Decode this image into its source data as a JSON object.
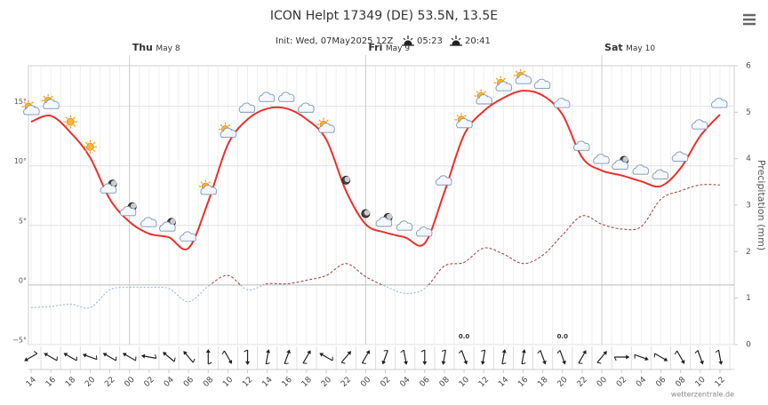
{
  "chart_data": {
    "type": "meteogram",
    "title": "ICON Helpt 17349 (DE) 53.5N, 13.5E",
    "subtitle": "Init: Wed, 07May2025 12Z",
    "sunrise": "05:23",
    "sunset": "20:41",
    "y2_label": "Precipitation (mm)",
    "credit": "wetterzentrale.de",
    "categories": [
      "14",
      "16",
      "18",
      "20",
      "22",
      "00",
      "02",
      "04",
      "06",
      "08",
      "10",
      "12",
      "14",
      "16",
      "18",
      "20",
      "22",
      "00",
      "02",
      "04",
      "06",
      "08",
      "10",
      "12",
      "14",
      "16",
      "18",
      "20",
      "22",
      "00",
      "02",
      "04",
      "06",
      "08",
      "10",
      "12"
    ],
    "day_labels": [
      {
        "day": "Thu",
        "date": "May 8",
        "category_index": 5
      },
      {
        "day": "Fri",
        "date": "May 9",
        "category_index": 17
      },
      {
        "day": "Sat",
        "date": "May 10",
        "category_index": 29
      }
    ],
    "ylim": [
      -5,
      18.4
    ],
    "yticks": [
      {
        "value": -5,
        "label": "−5°"
      },
      {
        "value": 0,
        "label": "0°"
      },
      {
        "value": 5,
        "label": "5°"
      },
      {
        "value": 10,
        "label": "10°"
      },
      {
        "value": 15,
        "label": "15°"
      }
    ],
    "y2lim": [
      0,
      6
    ],
    "y2ticks": [
      0,
      1,
      2,
      3,
      4,
      5,
      6
    ],
    "grid": true,
    "series": [
      {
        "color": "#e8312f",
        "values": [
          13.7,
          14.2,
          12.8,
          10.7,
          7.2,
          5.3,
          4.3,
          4.0,
          3.1,
          7.0,
          11.8,
          13.9,
          14.8,
          14.8,
          13.9,
          12.2,
          7.9,
          5.1,
          4.4,
          4.0,
          3.5,
          7.8,
          12.6,
          14.6,
          15.7,
          16.3,
          15.9,
          14.3,
          10.7,
          9.6,
          9.2,
          8.7,
          8.3,
          9.8,
          12.5,
          14.3
        ]
      },
      {
        "color": "#9b3b3b",
        "negative_color": "#8fb0dc",
        "values": [
          -1.9,
          -1.8,
          -1.6,
          -1.9,
          -0.4,
          -0.2,
          -0.2,
          -0.3,
          -1.4,
          -0.1,
          0.8,
          -0.4,
          0.1,
          0.1,
          0.4,
          0.8,
          1.8,
          0.7,
          -0.1,
          -0.7,
          -0.3,
          1.6,
          1.9,
          3.1,
          2.6,
          1.8,
          2.5,
          4.2,
          5.8,
          5.1,
          4.7,
          4.9,
          7.2,
          7.9,
          8.4,
          8.4
        ]
      },
      {
        "axis": "y2",
        "color": "#3a7fd5",
        "values": [
          null,
          null,
          null,
          null,
          null,
          null,
          null,
          null,
          null,
          null,
          null,
          null,
          null,
          null,
          null,
          null,
          null,
          null,
          null,
          null,
          null,
          null,
          0,
          null,
          null,
          null,
          null,
          0,
          null,
          null,
          null,
          null,
          null,
          null,
          null,
          null
        ],
        "value_labels": [
          null,
          null,
          null,
          null,
          null,
          null,
          null,
          null,
          null,
          null,
          null,
          null,
          null,
          null,
          null,
          null,
          null,
          null,
          null,
          null,
          null,
          null,
          "0.0",
          null,
          null,
          null,
          null,
          "0.0",
          null,
          null,
          null,
          null,
          null,
          null,
          null,
          null
        ]
      }
    ],
    "wind_direction": [
      240,
      300,
      300,
      290,
      300,
      300,
      280,
      310,
      320,
      0,
      150,
      180,
      10,
      20,
      30,
      300,
      40,
      30,
      200,
      170,
      180,
      190,
      160,
      190,
      10,
      10,
      160,
      160,
      30,
      40,
      90,
      110,
      120,
      150,
      160,
      170
    ]
  }
}
